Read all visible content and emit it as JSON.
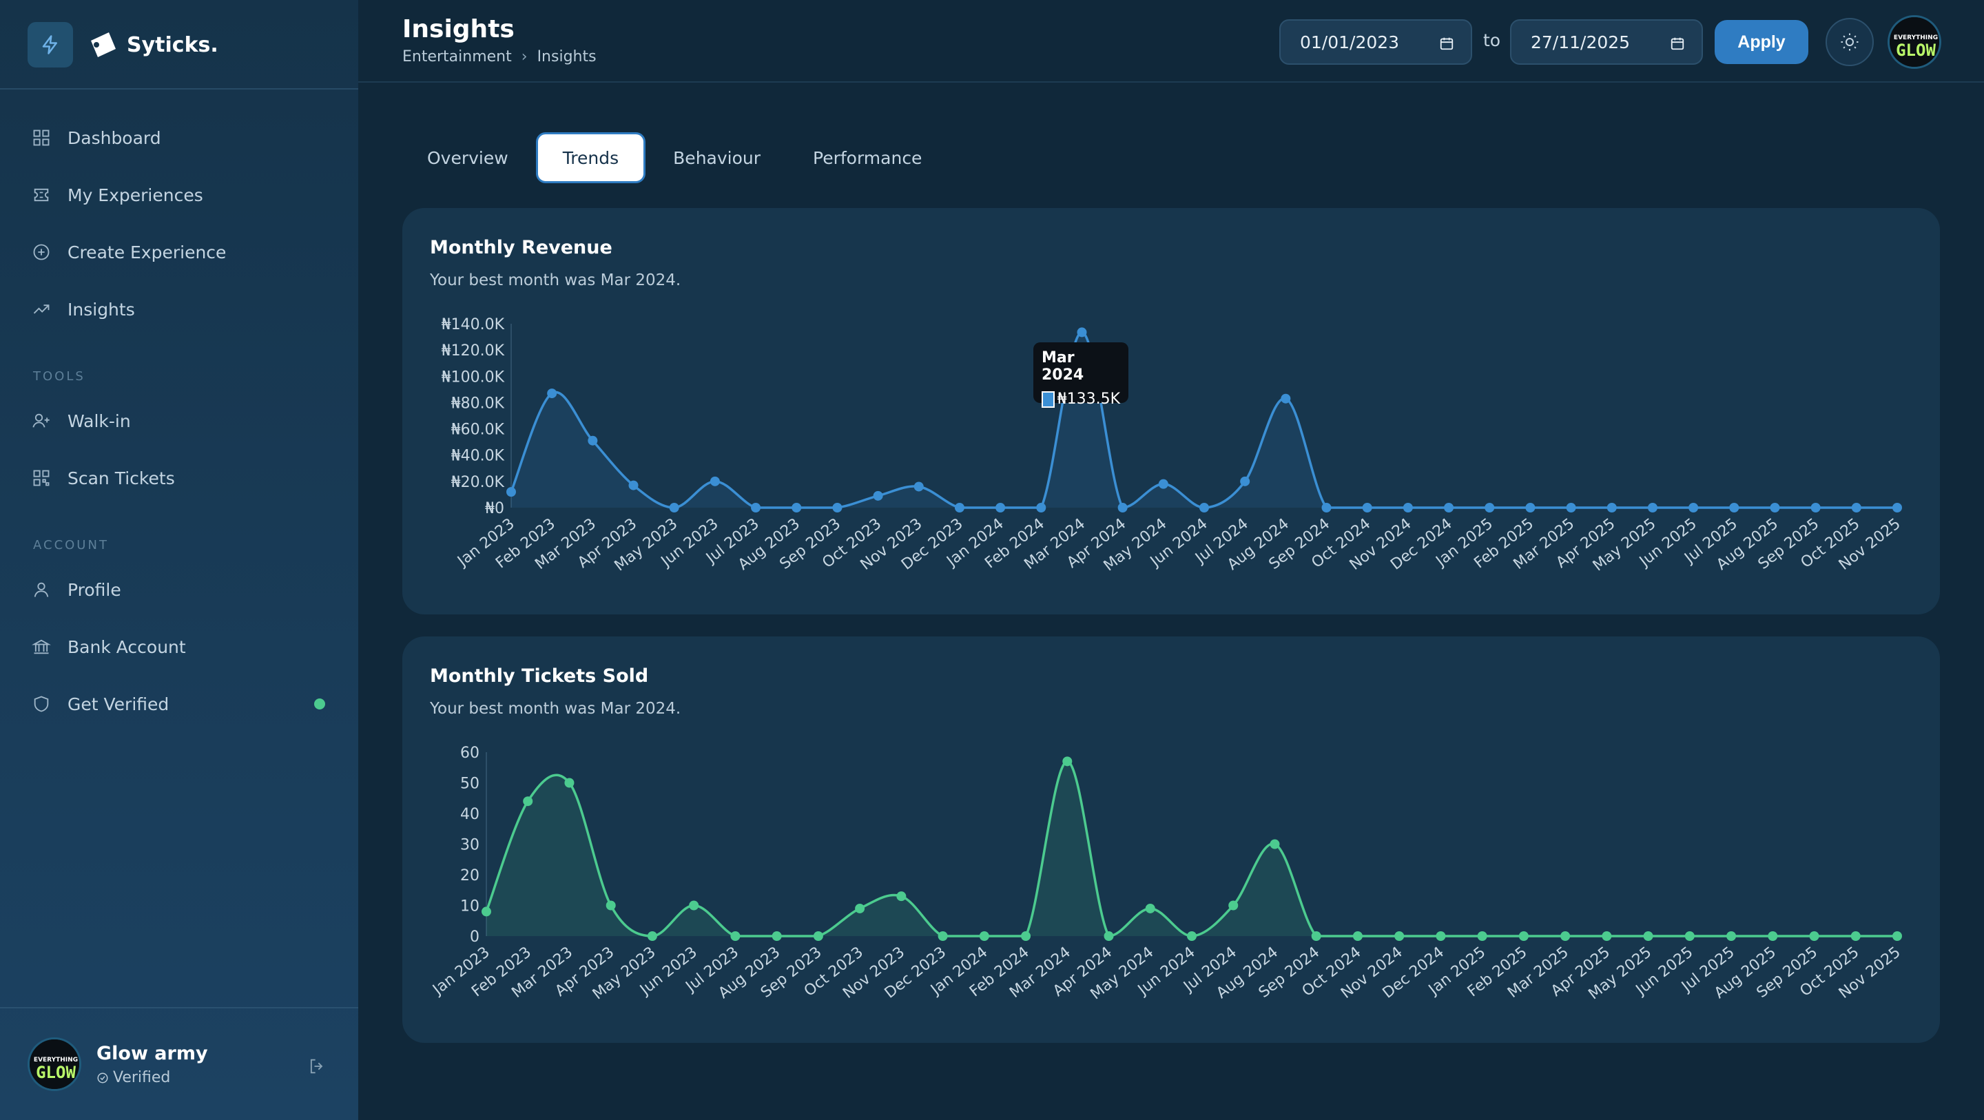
{
  "brand": {
    "name": "Syticks."
  },
  "sidebar": {
    "nav": [
      {
        "label": "Dashboard",
        "icon": "grid-icon"
      },
      {
        "label": "My Experiences",
        "icon": "ticket-icon"
      },
      {
        "label": "Create Experience",
        "icon": "plus-circle-icon"
      },
      {
        "label": "Insights",
        "icon": "trend-icon"
      }
    ],
    "tools_label": "TOOLS",
    "tools": [
      {
        "label": "Walk-in",
        "icon": "user-plus-icon"
      },
      {
        "label": "Scan Tickets",
        "icon": "qr-icon"
      }
    ],
    "account_label": "ACCOUNT",
    "account": [
      {
        "label": "Profile",
        "icon": "user-icon"
      },
      {
        "label": "Bank Account",
        "icon": "bank-icon"
      },
      {
        "label": "Get Verified",
        "icon": "shield-icon"
      }
    ],
    "user": {
      "name": "Glow army",
      "status": "Verified",
      "avatar_text_top": "EVERYTHING",
      "avatar_text_bottom": "GLOW"
    }
  },
  "header": {
    "title": "Insights",
    "breadcrumb": [
      "Entertainment",
      "Insights"
    ],
    "date_from": "01/01/2023",
    "date_to_label": "to",
    "date_to": "27/11/2025",
    "apply_label": "Apply"
  },
  "tabs": [
    {
      "label": "Overview",
      "active": false
    },
    {
      "label": "Trends",
      "active": true
    },
    {
      "label": "Behaviour",
      "active": false
    },
    {
      "label": "Performance",
      "active": false
    }
  ],
  "colors": {
    "revenue": "#3b8fd4",
    "tickets": "#4ccb8f"
  },
  "charts": {
    "revenue": {
      "title": "Monthly Revenue",
      "subtitle": "Your best month was Mar 2024."
    },
    "tickets": {
      "title": "Monthly Tickets Sold",
      "subtitle": "Your best month was Mar 2024."
    }
  },
  "tooltip": {
    "title": "Mar 2024",
    "value": "₦133.5K"
  },
  "chart_data": [
    {
      "type": "area",
      "title": "Monthly Revenue",
      "x": [
        "Jan 2023",
        "Feb 2023",
        "Mar 2023",
        "Apr 2023",
        "May 2023",
        "Jun 2023",
        "Jul 2023",
        "Aug 2023",
        "Sep 2023",
        "Oct 2023",
        "Nov 2023",
        "Dec 2023",
        "Jan 2024",
        "Feb 2024",
        "Mar 2024",
        "Apr 2024",
        "May 2024",
        "Jun 2024",
        "Jul 2024",
        "Aug 2024",
        "Sep 2024",
        "Oct 2024",
        "Nov 2024",
        "Dec 2024",
        "Jan 2025",
        "Feb 2025",
        "Mar 2025",
        "Apr 2025",
        "May 2025",
        "Jun 2025",
        "Jul 2025",
        "Aug 2025",
        "Sep 2025",
        "Oct 2025",
        "Nov 2025"
      ],
      "values": [
        12000,
        87000,
        51000,
        17000,
        0,
        20000,
        0,
        0,
        0,
        9000,
        16000,
        0,
        0,
        0,
        133500,
        0,
        18000,
        0,
        20000,
        83000,
        0,
        0,
        0,
        0,
        0,
        0,
        0,
        0,
        0,
        0,
        0,
        0,
        0,
        0,
        0
      ],
      "y_ticks": [
        "₦0",
        "₦20.0K",
        "₦40.0K",
        "₦60.0K",
        "₦80.0K",
        "₦100.0K",
        "₦120.0K",
        "₦140.0K"
      ],
      "ylim": [
        0,
        140000
      ],
      "grid": false
    },
    {
      "type": "area",
      "title": "Monthly Tickets Sold",
      "x": [
        "Jan 2023",
        "Feb 2023",
        "Mar 2023",
        "Apr 2023",
        "May 2023",
        "Jun 2023",
        "Jul 2023",
        "Aug 2023",
        "Sep 2023",
        "Oct 2023",
        "Nov 2023",
        "Dec 2023",
        "Jan 2024",
        "Feb 2024",
        "Mar 2024",
        "Apr 2024",
        "May 2024",
        "Jun 2024",
        "Jul 2024",
        "Aug 2024",
        "Sep 2024",
        "Oct 2024",
        "Nov 2024",
        "Dec 2024",
        "Jan 2025",
        "Feb 2025",
        "Mar 2025",
        "Apr 2025",
        "May 2025",
        "Jun 2025",
        "Jul 2025",
        "Aug 2025",
        "Sep 2025",
        "Oct 2025",
        "Nov 2025"
      ],
      "values": [
        8,
        44,
        50,
        10,
        0,
        10,
        0,
        0,
        0,
        9,
        13,
        0,
        0,
        0,
        57,
        0,
        9,
        0,
        10,
        30,
        0,
        0,
        0,
        0,
        0,
        0,
        0,
        0,
        0,
        0,
        0,
        0,
        0,
        0,
        0
      ],
      "y_ticks": [
        "0",
        "10",
        "20",
        "30",
        "40",
        "50",
        "60"
      ],
      "ylim": [
        0,
        60
      ],
      "grid": false
    }
  ]
}
